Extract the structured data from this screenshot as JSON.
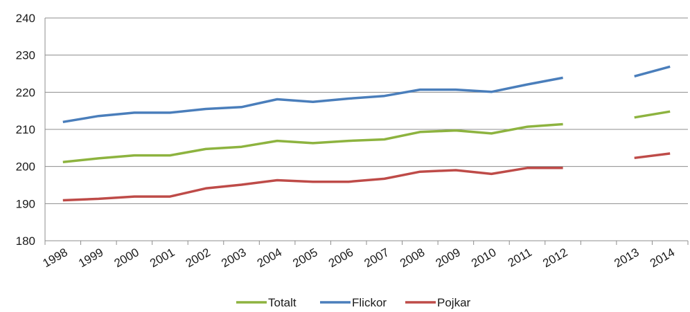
{
  "chart_data": {
    "type": "line",
    "title": "",
    "xlabel": "",
    "ylabel": "",
    "ylim": [
      180,
      240
    ],
    "yticks": [
      180,
      190,
      200,
      210,
      220,
      230,
      240
    ],
    "grid": true,
    "legend_position": "bottom",
    "categories": [
      "1998",
      "1999",
      "2000",
      "2001",
      "2002",
      "2003",
      "2004",
      "2005",
      "2006",
      "2007",
      "2008",
      "2009",
      "2010",
      "2011",
      "2012",
      "",
      "2013",
      "2014"
    ],
    "series": [
      {
        "name": "Totalt",
        "color": "#8DB33F",
        "values": [
          201.2,
          202.2,
          203.0,
          203.0,
          204.7,
          205.3,
          206.9,
          206.3,
          206.9,
          207.3,
          209.3,
          209.7,
          208.9,
          210.7,
          211.4,
          null,
          213.2,
          214.8
        ]
      },
      {
        "name": "Flickor",
        "color": "#4A7EBB",
        "values": [
          212.0,
          213.6,
          214.5,
          214.5,
          215.5,
          216.0,
          218.1,
          217.4,
          218.3,
          219.0,
          220.7,
          220.7,
          220.1,
          222.1,
          223.9,
          null,
          224.3,
          226.9
        ]
      },
      {
        "name": "Pojkar",
        "color": "#BE4B48",
        "values": [
          190.9,
          191.3,
          191.9,
          191.9,
          194.1,
          195.1,
          196.3,
          195.9,
          195.9,
          196.7,
          198.6,
          199.0,
          198.0,
          199.6,
          199.6,
          null,
          202.3,
          203.5
        ]
      }
    ]
  }
}
